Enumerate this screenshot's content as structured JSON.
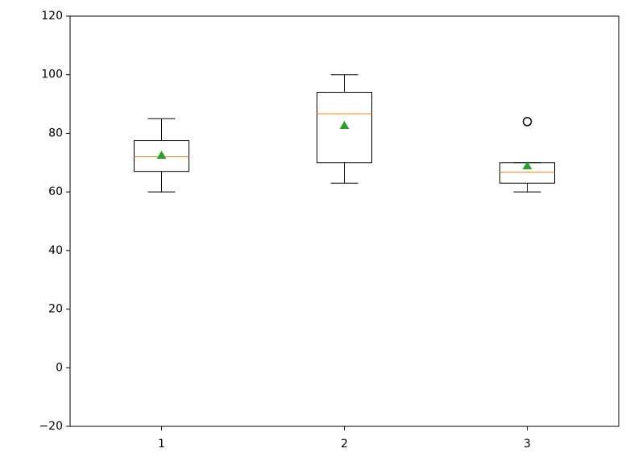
{
  "chart_data": {
    "type": "box",
    "categories": [
      "1",
      "2",
      "3"
    ],
    "boxes": [
      {
        "whislo": 60,
        "q1": 67,
        "med": 72,
        "q3": 77.5,
        "whishi": 85,
        "mean": 72.4,
        "fliers": []
      },
      {
        "whislo": 63,
        "q1": 70,
        "med": 86.7,
        "q3": 94,
        "whishi": 100,
        "mean": 82.6,
        "fliers": []
      },
      {
        "whislo": 60,
        "q1": 63,
        "med": 66.7,
        "q3": 70,
        "whishi": 70,
        "mean": 68.8,
        "fliers": [
          84
        ]
      }
    ],
    "box_color": "#000000",
    "median_color": "#ff7f0e",
    "mean_color": "#2ca02c",
    "xlim": [
      0.5,
      3.5
    ],
    "ylim": [
      -20,
      120
    ],
    "yticks": [
      {
        "value": -20,
        "label": "−20"
      },
      0,
      20,
      40,
      60,
      80,
      100,
      120
    ],
    "grid": false
  }
}
